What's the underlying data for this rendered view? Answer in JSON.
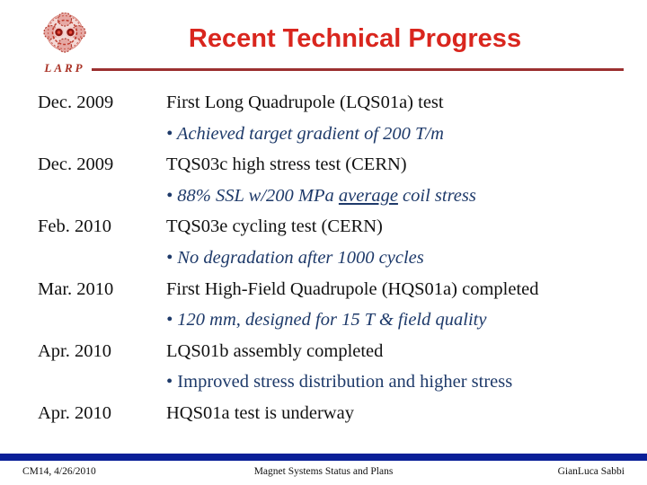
{
  "slide_title": "Recent Technical Progress",
  "logo": {
    "text": "LARP"
  },
  "content": {
    "rows": [
      {
        "date": "Dec. 2009",
        "style": "plain",
        "segments": [
          {
            "text": "First Long Quadrupole (LQS01a) test"
          }
        ]
      },
      {
        "date": "",
        "style": "bullet-italic",
        "segments": [
          {
            "text": "• Achieved target gradient of 200 T/m"
          }
        ]
      },
      {
        "date": "Dec. 2009",
        "style": "plain",
        "segments": [
          {
            "text": "TQS03c high stress test (CERN)"
          }
        ]
      },
      {
        "date": "",
        "style": "bullet-italic",
        "segments": [
          {
            "text": "•  88% SSL w/200 MPa "
          },
          {
            "text": "average",
            "underline": true
          },
          {
            "text": " coil stress"
          }
        ]
      },
      {
        "date": "Feb. 2010",
        "style": "plain",
        "segments": [
          {
            "text": "TQS03e cycling test (CERN)"
          }
        ]
      },
      {
        "date": "",
        "style": "bullet-italic",
        "segments": [
          {
            "text": "• No degradation after 1000 cycles"
          }
        ]
      },
      {
        "date": "Mar. 2010",
        "style": "plain",
        "segments": [
          {
            "text": "First High-Field Quadrupole (HQS01a) completed"
          }
        ]
      },
      {
        "date": "",
        "style": "bullet-italic",
        "segments": [
          {
            "text": "• 120 mm, designed for 15 T & field quality"
          }
        ]
      },
      {
        "date": "Apr. 2010",
        "style": "plain",
        "segments": [
          {
            "text": "LQS01b assembly completed"
          }
        ]
      },
      {
        "date": "",
        "style": "bullet-upright",
        "segments": [
          {
            "text": "• Improved stress distribution and higher stress"
          }
        ]
      },
      {
        "date": "Apr. 2010",
        "style": "plain",
        "segments": [
          {
            "text": "HQS01a test is underway"
          }
        ]
      }
    ]
  },
  "footer": {
    "left": "CM14, 4/26/2010",
    "center": "Magnet Systems Status and Plans",
    "right": "GianLuca Sabbi"
  },
  "colors": {
    "title_red": "#d9261e",
    "rule_red": "#9b3030",
    "bullet_blue": "#1e3a6a",
    "footer_bar_blue": "#0a2098"
  }
}
